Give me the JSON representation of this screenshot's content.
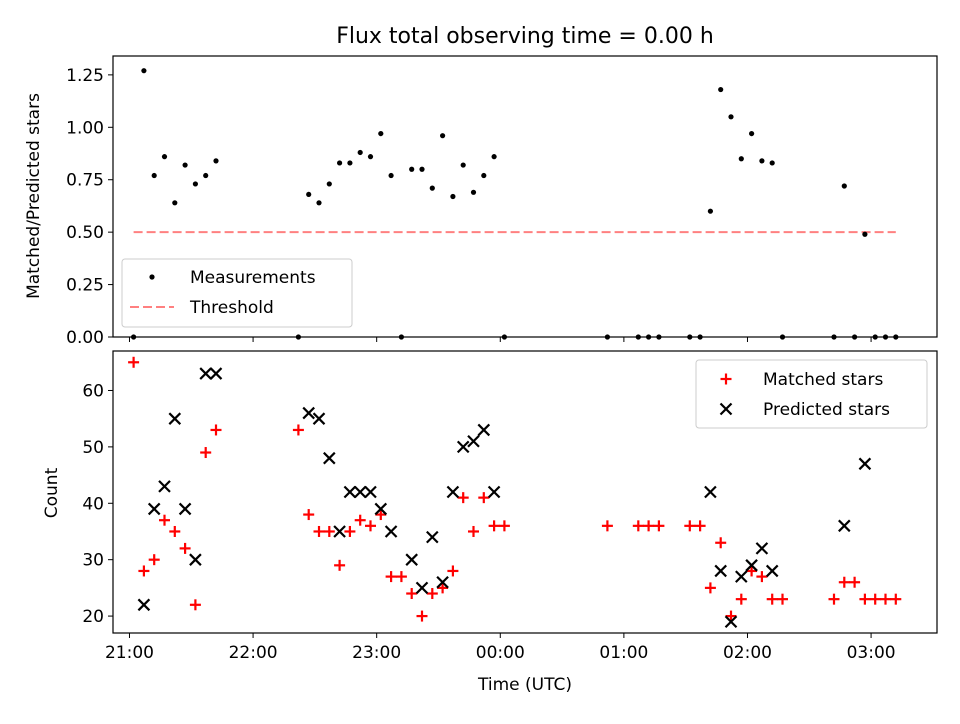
{
  "title": "Flux total observing time = 0.00 h",
  "colors": {
    "matched": "#ff0000",
    "predicted": "#000000",
    "threshold": "#ff8080",
    "measurement": "#000000"
  },
  "chart_data": [
    {
      "type": "scatter",
      "ylabel": "Matched/Predicted stars",
      "xlabel": "",
      "xlim": [
        "20:52",
        "03:32"
      ],
      "ylim": [
        0,
        1.34
      ],
      "yticks": [
        "0.00",
        "0.25",
        "0.50",
        "0.75",
        "1.00",
        "1.25"
      ],
      "legend": {
        "position": "lower-left",
        "entries": [
          "Measurements",
          "Threshold"
        ]
      },
      "series": [
        {
          "name": "Measurements",
          "marker": "dot",
          "points": [
            [
              "21:02",
              0.0
            ],
            [
              "21:07",
              1.27
            ],
            [
              "21:12",
              0.77
            ],
            [
              "21:17",
              0.86
            ],
            [
              "21:22",
              0.64
            ],
            [
              "21:27",
              0.82
            ],
            [
              "21:32",
              0.73
            ],
            [
              "21:37",
              0.77
            ],
            [
              "21:42",
              0.84
            ],
            [
              "22:22",
              0.0
            ],
            [
              "22:27",
              0.68
            ],
            [
              "22:32",
              0.64
            ],
            [
              "22:37",
              0.73
            ],
            [
              "22:42",
              0.83
            ],
            [
              "22:47",
              0.83
            ],
            [
              "22:52",
              0.88
            ],
            [
              "22:57",
              0.86
            ],
            [
              "23:02",
              0.97
            ],
            [
              "23:07",
              0.77
            ],
            [
              "23:12",
              0.0
            ],
            [
              "23:17",
              0.8
            ],
            [
              "23:22",
              0.8
            ],
            [
              "23:27",
              0.71
            ],
            [
              "23:32",
              0.96
            ],
            [
              "23:37",
              0.67
            ],
            [
              "23:42",
              0.82
            ],
            [
              "23:47",
              0.69
            ],
            [
              "23:52",
              0.77
            ],
            [
              "23:57",
              0.86
            ],
            [
              "00:02",
              0.0
            ],
            [
              "00:52",
              0.0
            ],
            [
              "01:07",
              0.0
            ],
            [
              "01:12",
              0.0
            ],
            [
              "01:17",
              0.0
            ],
            [
              "01:32",
              0.0
            ],
            [
              "01:37",
              0.0
            ],
            [
              "01:42",
              0.6
            ],
            [
              "01:47",
              1.18
            ],
            [
              "01:52",
              1.05
            ],
            [
              "01:57",
              0.85
            ],
            [
              "02:02",
              0.97
            ],
            [
              "02:07",
              0.84
            ],
            [
              "02:12",
              0.83
            ],
            [
              "02:17",
              0.0
            ],
            [
              "02:42",
              0.0
            ],
            [
              "02:47",
              0.72
            ],
            [
              "02:52",
              0.0
            ],
            [
              "02:57",
              0.49
            ],
            [
              "03:02",
              0.0
            ],
            [
              "03:07",
              0.0
            ],
            [
              "03:12",
              0.0
            ]
          ]
        },
        {
          "name": "Threshold",
          "style": "dashed",
          "points": [
            [
              "21:02",
              0.5
            ],
            [
              "03:12",
              0.5
            ]
          ]
        }
      ]
    },
    {
      "type": "scatter",
      "ylabel": "Count",
      "xlabel": "Time (UTC)",
      "xlim": [
        "20:52",
        "03:32"
      ],
      "ylim": [
        17,
        67
      ],
      "yticks": [
        "20",
        "30",
        "40",
        "50",
        "60"
      ],
      "xticks": [
        "21:00",
        "22:00",
        "23:00",
        "00:00",
        "01:00",
        "02:00",
        "03:00"
      ],
      "legend": {
        "position": "top-right",
        "entries": [
          "Matched stars",
          "Predicted stars"
        ]
      },
      "series": [
        {
          "name": "Matched stars",
          "marker": "plus",
          "points": [
            [
              "21:02",
              65
            ],
            [
              "21:07",
              28
            ],
            [
              "21:12",
              30
            ],
            [
              "21:17",
              37
            ],
            [
              "21:22",
              35
            ],
            [
              "21:27",
              32
            ],
            [
              "21:32",
              22
            ],
            [
              "21:37",
              49
            ],
            [
              "21:42",
              53
            ],
            [
              "22:22",
              53
            ],
            [
              "22:27",
              38
            ],
            [
              "22:32",
              35
            ],
            [
              "22:37",
              35
            ],
            [
              "22:42",
              29
            ],
            [
              "22:47",
              35
            ],
            [
              "22:52",
              37
            ],
            [
              "22:57",
              36
            ],
            [
              "23:02",
              38
            ],
            [
              "23:07",
              27
            ],
            [
              "23:12",
              27
            ],
            [
              "23:17",
              24
            ],
            [
              "23:22",
              20
            ],
            [
              "23:27",
              24
            ],
            [
              "23:32",
              25
            ],
            [
              "23:37",
              28
            ],
            [
              "23:42",
              41
            ],
            [
              "23:47",
              35
            ],
            [
              "23:52",
              41
            ],
            [
              "23:57",
              36
            ],
            [
              "00:02",
              36
            ],
            [
              "00:52",
              36
            ],
            [
              "01:07",
              36
            ],
            [
              "01:12",
              36
            ],
            [
              "01:17",
              36
            ],
            [
              "01:32",
              36
            ],
            [
              "01:37",
              36
            ],
            [
              "01:42",
              25
            ],
            [
              "01:47",
              33
            ],
            [
              "01:52",
              20
            ],
            [
              "01:57",
              23
            ],
            [
              "02:02",
              28
            ],
            [
              "02:07",
              27
            ],
            [
              "02:12",
              23
            ],
            [
              "02:17",
              23
            ],
            [
              "02:42",
              23
            ],
            [
              "02:47",
              26
            ],
            [
              "02:52",
              26
            ],
            [
              "02:57",
              23
            ],
            [
              "03:02",
              23
            ],
            [
              "03:07",
              23
            ],
            [
              "03:12",
              23
            ]
          ]
        },
        {
          "name": "Predicted stars",
          "marker": "x",
          "points": [
            [
              "21:07",
              22
            ],
            [
              "21:12",
              39
            ],
            [
              "21:17",
              43
            ],
            [
              "21:22",
              55
            ],
            [
              "21:27",
              39
            ],
            [
              "21:32",
              30
            ],
            [
              "21:37",
              63
            ],
            [
              "21:42",
              63
            ],
            [
              "22:27",
              56
            ],
            [
              "22:32",
              55
            ],
            [
              "22:37",
              48
            ],
            [
              "22:42",
              35
            ],
            [
              "22:47",
              42
            ],
            [
              "22:52",
              42
            ],
            [
              "22:57",
              42
            ],
            [
              "23:02",
              39
            ],
            [
              "23:07",
              35
            ],
            [
              "23:17",
              30
            ],
            [
              "23:22",
              25
            ],
            [
              "23:27",
              34
            ],
            [
              "23:32",
              26
            ],
            [
              "23:37",
              42
            ],
            [
              "23:42",
              50
            ],
            [
              "23:47",
              51
            ],
            [
              "23:52",
              53
            ],
            [
              "23:57",
              42
            ],
            [
              "01:42",
              42
            ],
            [
              "01:47",
              28
            ],
            [
              "01:52",
              19
            ],
            [
              "01:57",
              27
            ],
            [
              "02:02",
              29
            ],
            [
              "02:07",
              32
            ],
            [
              "02:12",
              28
            ],
            [
              "02:47",
              36
            ],
            [
              "02:57",
              47
            ]
          ]
        }
      ]
    }
  ]
}
